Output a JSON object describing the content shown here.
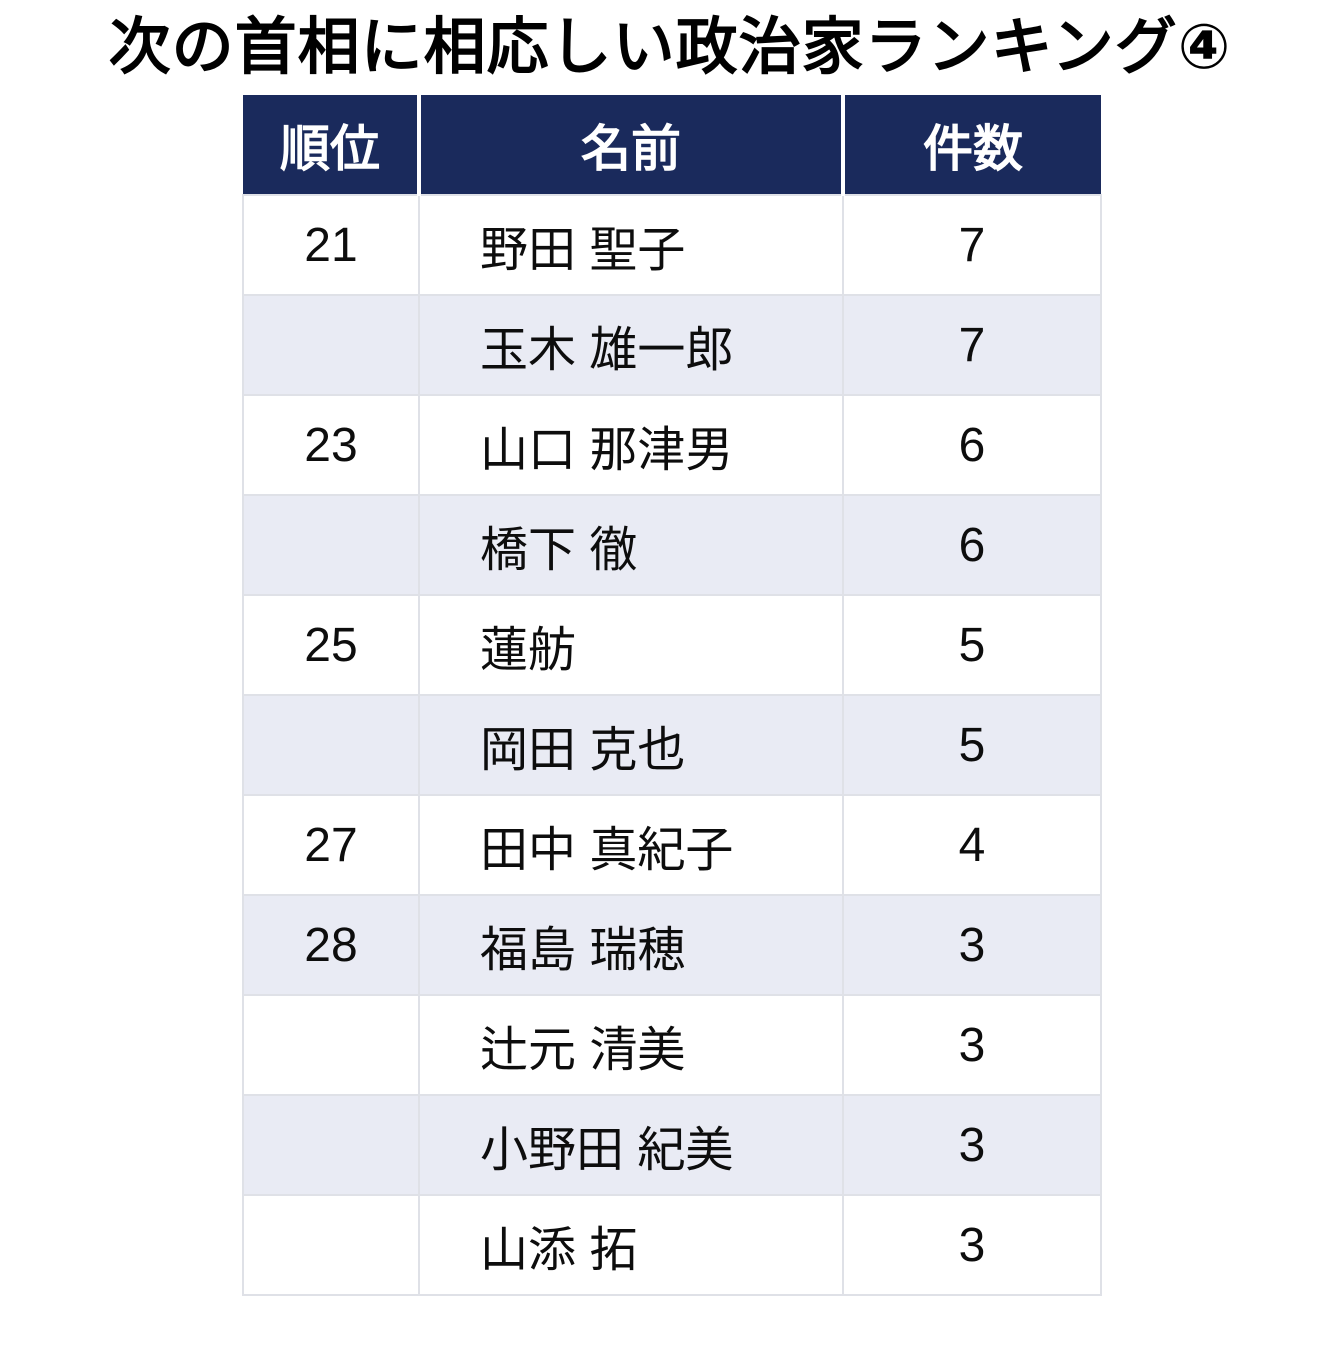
{
  "page_title": "次の首相に相応しい政治家ランキング④",
  "chart_data": {
    "type": "table",
    "title": "次の首相に相応しい政治家ランキング④",
    "columns": [
      "順位",
      "名前",
      "件数"
    ],
    "rows": [
      [
        "21",
        "野田 聖子",
        "7"
      ],
      [
        "",
        "玉木 雄一郎",
        "7"
      ],
      [
        "23",
        "山口 那津男",
        "6"
      ],
      [
        "",
        "橋下 徹",
        "6"
      ],
      [
        "25",
        "蓮舫",
        "5"
      ],
      [
        "",
        "岡田 克也",
        "5"
      ],
      [
        "27",
        "田中 真紀子",
        "4"
      ],
      [
        "28",
        "福島 瑞穂",
        "3"
      ],
      [
        "",
        "辻元 清美",
        "3"
      ],
      [
        "",
        "小野田 紀美",
        "3"
      ],
      [
        "",
        "山添 拓",
        "3"
      ]
    ]
  },
  "colors": {
    "header-bg": "#1a2a5c",
    "header-text": "#ffffff",
    "row-bg": "#ffffff",
    "row-alt-bg": "#e9ebf4",
    "border": "#dfe1e7",
    "title-text": "#000000"
  }
}
